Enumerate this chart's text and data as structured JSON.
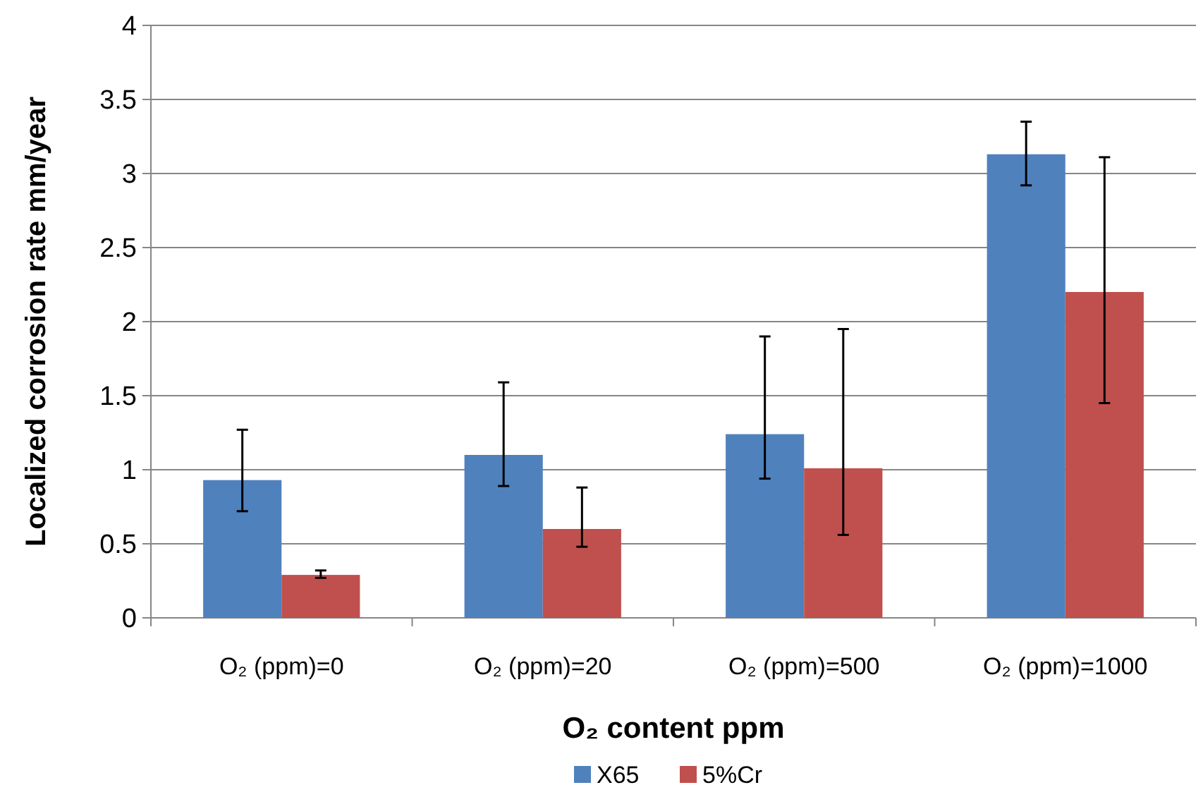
{
  "chart_data": {
    "type": "bar",
    "xlabel": "O₂ content ppm",
    "ylabel": "Localized corrosion rate mm/year",
    "categories": [
      "O₂ (ppm)=0",
      "O₂ (ppm)=20",
      "O₂ (ppm)=500",
      "O₂ (ppm)=1000"
    ],
    "series": [
      {
        "name": "X65",
        "color": "#4f81bd",
        "values": [
          0.93,
          1.1,
          1.24,
          3.13
        ],
        "errors": [
          [
            0.72,
            1.27
          ],
          [
            0.89,
            1.59
          ],
          [
            0.94,
            1.9
          ],
          [
            2.92,
            3.35
          ]
        ]
      },
      {
        "name": "5%Cr",
        "color": "#c0504d",
        "values": [
          0.29,
          0.6,
          1.01,
          2.2
        ],
        "errors": [
          [
            0.27,
            0.32
          ],
          [
            0.48,
            0.88
          ],
          [
            0.56,
            1.95
          ],
          [
            1.45,
            3.11
          ]
        ]
      }
    ],
    "ylim": [
      0,
      4
    ],
    "yticks": [
      0,
      0.5,
      1,
      1.5,
      2,
      2.5,
      3,
      3.5,
      4
    ],
    "grid": "y",
    "legend": "bottom"
  }
}
